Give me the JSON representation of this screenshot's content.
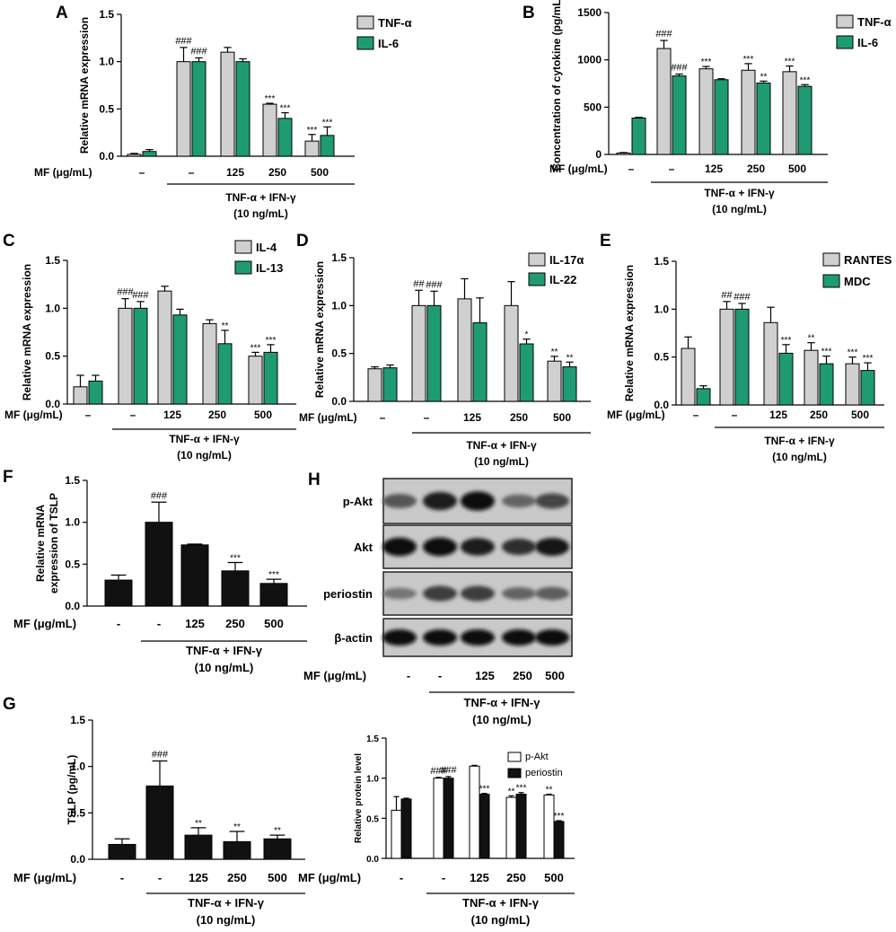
{
  "colors": {
    "gray": "#d0d0d0",
    "green": "#1f9b73",
    "black": "#111111",
    "white": "#ffffff",
    "edge": "#000000"
  },
  "xaxis": {
    "mf_label": "MF (μg/mL)",
    "groups_dash": [
      "–",
      "–",
      "125",
      "250",
      "500"
    ],
    "groups_hyphen": [
      "-",
      "-",
      "125",
      "250",
      "500"
    ],
    "treatment_line1": "TNF-α + IFN-γ",
    "treatment_line2": "(10 ng/mL)"
  },
  "western_blot": {
    "panel_letter": "H",
    "bands": [
      {
        "label": "p-Akt",
        "intensity": [
          0.55,
          0.9,
          1.0,
          0.45,
          0.65
        ]
      },
      {
        "label": "Akt",
        "intensity": [
          1.0,
          1.0,
          0.9,
          0.8,
          0.95
        ]
      },
      {
        "label": "periostin",
        "intensity": [
          0.35,
          0.7,
          0.7,
          0.45,
          0.5
        ]
      },
      {
        "label": "β-actin",
        "intensity": [
          1.0,
          1.0,
          1.0,
          1.0,
          1.0
        ]
      }
    ]
  },
  "chart_data": [
    {
      "id": "A",
      "type": "bar",
      "ylabel": "Relative mRNA expression",
      "ylim": [
        0,
        1.5
      ],
      "yticks": [
        "0.0",
        "0.5",
        "1.0",
        "1.5"
      ],
      "series": [
        {
          "name": "TNF-α",
          "color": "gray",
          "values": [
            0.02,
            1.0,
            1.1,
            0.55,
            0.16
          ],
          "errors": [
            0.01,
            0.15,
            0.05,
            0.01,
            0.07
          ],
          "labels": [
            "",
            "###",
            "",
            "***",
            "***"
          ]
        },
        {
          "name": "IL-6",
          "color": "green",
          "values": [
            0.05,
            1.0,
            1.0,
            0.4,
            0.22
          ],
          "errors": [
            0.02,
            0.04,
            0.03,
            0.06,
            0.09
          ],
          "labels": [
            "",
            "###",
            "",
            "***",
            "***"
          ]
        }
      ]
    },
    {
      "id": "B",
      "type": "bar",
      "ylabel": "Concentration of cytokine (pg/mL)",
      "ylim": [
        0,
        1500
      ],
      "yticks": [
        "0",
        "500",
        "1000",
        "1500"
      ],
      "series": [
        {
          "name": "TNF-α",
          "color": "gray",
          "values": [
            15,
            1120,
            905,
            890,
            875
          ],
          "errors": [
            5,
            85,
            25,
            70,
            60
          ],
          "labels": [
            "",
            "###",
            "***",
            "***",
            "***"
          ]
        },
        {
          "name": "IL-6",
          "color": "green",
          "values": [
            385,
            830,
            790,
            755,
            720
          ],
          "errors": [
            8,
            20,
            10,
            20,
            18
          ],
          "labels": [
            "",
            "###",
            "",
            "**",
            "***"
          ]
        }
      ]
    },
    {
      "id": "C",
      "type": "bar",
      "ylabel": "Relative mRNA expression",
      "ylim": [
        0,
        1.5
      ],
      "yticks": [
        "0.0",
        "0.5",
        "1.0",
        "1.5"
      ],
      "series": [
        {
          "name": "IL-4",
          "color": "gray",
          "values": [
            0.18,
            1.0,
            1.18,
            0.84,
            0.5
          ],
          "errors": [
            0.12,
            0.1,
            0.05,
            0.04,
            0.04
          ],
          "labels": [
            "",
            "###",
            "",
            "",
            "***"
          ]
        },
        {
          "name": "IL-13",
          "color": "green",
          "values": [
            0.24,
            1.0,
            0.93,
            0.63,
            0.54
          ],
          "errors": [
            0.06,
            0.07,
            0.06,
            0.14,
            0.08
          ],
          "labels": [
            "",
            "###",
            "",
            "**",
            "***"
          ]
        }
      ]
    },
    {
      "id": "D",
      "type": "bar",
      "ylabel": "Relative mRNA expression",
      "ylim": [
        0,
        1.5
      ],
      "yticks": [
        "0.0",
        "0.5",
        "1.0",
        "1.5"
      ],
      "series": [
        {
          "name": "IL-17α",
          "color": "gray",
          "values": [
            0.34,
            1.0,
            1.07,
            1.0,
            0.42
          ],
          "errors": [
            0.02,
            0.16,
            0.21,
            0.25,
            0.05
          ],
          "labels": [
            "",
            "##",
            "",
            "",
            "**"
          ]
        },
        {
          "name": "IL-22",
          "color": "green",
          "values": [
            0.35,
            1.0,
            0.82,
            0.6,
            0.36
          ],
          "errors": [
            0.03,
            0.15,
            0.26,
            0.05,
            0.05
          ],
          "labels": [
            "",
            "###",
            "",
            "*",
            "**"
          ]
        }
      ]
    },
    {
      "id": "E",
      "type": "bar",
      "ylabel": "Relative mRNA expression",
      "ylim": [
        0,
        1.5
      ],
      "yticks": [
        "0.0",
        "0.5",
        "1.0",
        "1.5"
      ],
      "series": [
        {
          "name": "RANTES",
          "color": "gray",
          "values": [
            0.59,
            1.0,
            0.86,
            0.57,
            0.43
          ],
          "errors": [
            0.12,
            0.08,
            0.16,
            0.08,
            0.07
          ],
          "labels": [
            "",
            "##",
            "",
            "**",
            "***"
          ]
        },
        {
          "name": "MDC",
          "color": "green",
          "values": [
            0.17,
            1.0,
            0.54,
            0.43,
            0.36
          ],
          "errors": [
            0.03,
            0.06,
            0.09,
            0.08,
            0.08
          ],
          "labels": [
            "",
            "###",
            "***",
            "***",
            "***"
          ]
        }
      ]
    },
    {
      "id": "F",
      "type": "bar",
      "ylabel": "Relative mRNA expression of TSLP",
      "ylim": [
        0,
        1.5
      ],
      "yticks": [
        "0.0",
        "0.5",
        "1.0",
        "1.5"
      ],
      "series": [
        {
          "name": "TSLP mRNA",
          "color": "black",
          "values": [
            0.31,
            1.0,
            0.73,
            0.42,
            0.27
          ],
          "errors": [
            0.06,
            0.24,
            0.01,
            0.1,
            0.05
          ],
          "labels": [
            "",
            "###",
            "",
            "***",
            "***"
          ]
        }
      ]
    },
    {
      "id": "G",
      "type": "bar",
      "ylabel": "TSLP (pg/mL)",
      "ylim": [
        0,
        1.5
      ],
      "yticks": [
        "0.0",
        "0.5",
        "1.0",
        "1.5"
      ],
      "series": [
        {
          "name": "TSLP",
          "color": "black",
          "values": [
            0.16,
            0.79,
            0.26,
            0.19,
            0.22
          ],
          "errors": [
            0.06,
            0.27,
            0.08,
            0.11,
            0.04
          ],
          "labels": [
            "",
            "###",
            "**",
            "**",
            "**"
          ]
        }
      ]
    },
    {
      "id": "H-quant",
      "type": "bar",
      "ylabel": "Relative protein level",
      "ylim": [
        0,
        1.5
      ],
      "yticks": [
        "0.0",
        "0.5",
        "1.0",
        "1.5"
      ],
      "series": [
        {
          "name": "p-Akt",
          "color": "white",
          "values": [
            0.6,
            1.0,
            1.15,
            0.76,
            0.79
          ],
          "errors": [
            0.17,
            0.01,
            0.01,
            0.02,
            0.01
          ],
          "labels": [
            "",
            "###",
            "",
            "**",
            "**"
          ]
        },
        {
          "name": "periostin",
          "color": "black",
          "values": [
            0.74,
            1.0,
            0.8,
            0.8,
            0.46
          ],
          "errors": [
            0.01,
            0.02,
            0.01,
            0.02,
            0.01
          ],
          "labels": [
            "",
            "###",
            "***",
            "***",
            "***"
          ]
        }
      ]
    }
  ]
}
